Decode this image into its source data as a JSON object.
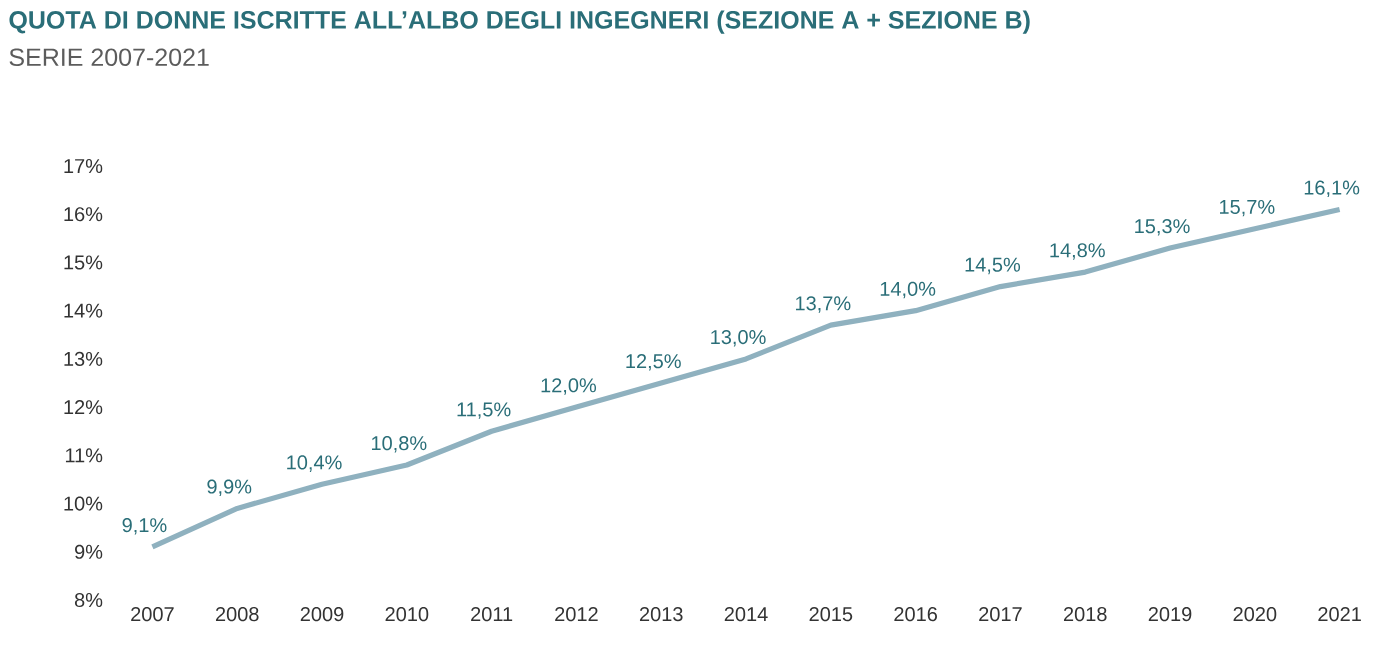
{
  "chart_data": {
    "type": "line",
    "title": "QUOTA DI DONNE ISCRITTE ALL’ALBO DEGLI INGEGNERI (SEZIONE A + SEZIONE B)",
    "subtitle": "SERIE 2007-2021",
    "categories": [
      "2007",
      "2008",
      "2009",
      "2010",
      "2011",
      "2012",
      "2013",
      "2014",
      "2015",
      "2016",
      "2017",
      "2018",
      "2019",
      "2020",
      "2021"
    ],
    "values": [
      9.1,
      9.9,
      10.4,
      10.8,
      11.5,
      12.0,
      12.5,
      13.0,
      13.7,
      14.0,
      14.5,
      14.8,
      15.3,
      15.7,
      16.1
    ],
    "value_labels": [
      "9,1%",
      "9,9%",
      "10,4%",
      "10,8%",
      "11,5%",
      "12,0%",
      "12,5%",
      "13,0%",
      "13,7%",
      "14,0%",
      "14,5%",
      "14,8%",
      "15,3%",
      "15,7%",
      "16,1%"
    ],
    "color": "#8fb1bf",
    "ylim": [
      8,
      17
    ],
    "yticks": [
      {
        "value": 8,
        "label": "8%"
      },
      {
        "value": 9,
        "label": "9%"
      },
      {
        "value": 10,
        "label": "10%"
      },
      {
        "value": 11,
        "label": "11%"
      },
      {
        "value": 12,
        "label": "12%"
      },
      {
        "value": 13,
        "label": "13%"
      },
      {
        "value": 14,
        "label": "14%"
      },
      {
        "value": 15,
        "label": "15%"
      },
      {
        "value": 16,
        "label": "16%"
      },
      {
        "value": 17,
        "label": "17%"
      }
    ]
  }
}
